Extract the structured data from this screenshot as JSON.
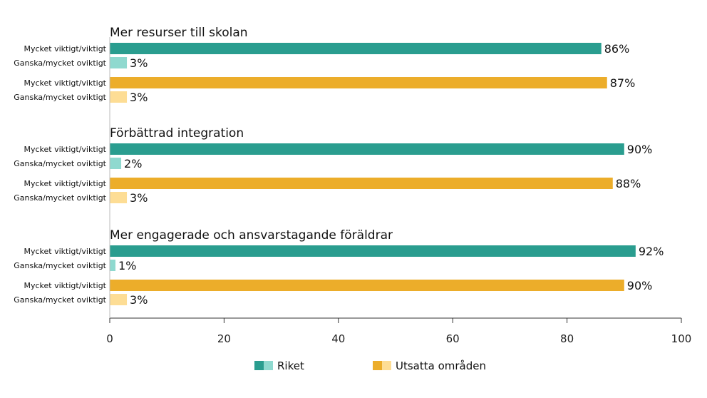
{
  "chart_data": {
    "type": "bar",
    "orientation": "horizontal",
    "xlim": [
      0,
      100
    ],
    "xticks": [
      0,
      20,
      40,
      60,
      80,
      100
    ],
    "colors": {
      "riket_dark": "#2a9d8f",
      "riket_light": "#8fd9cf",
      "utsatta_dark": "#ecad2a",
      "utsatta_light": "#fddd95"
    },
    "legend": [
      {
        "name": "Riket",
        "colors": [
          "#2a9d8f",
          "#8fd9cf"
        ]
      },
      {
        "name": "Utsatta områden",
        "colors": [
          "#ecad2a",
          "#fddd95"
        ]
      }
    ],
    "groups": [
      {
        "title": "Mer resurser till skolan",
        "rows": [
          {
            "label": "Mycket viktigt/viktigt",
            "series": "Riket",
            "value": 86,
            "value_label": "86%",
            "color": "#2a9d8f"
          },
          {
            "label": "Ganska/mycket oviktigt",
            "series": "Riket",
            "value": 3,
            "value_label": "3%",
            "color": "#8fd9cf"
          },
          {
            "label": "Mycket viktigt/viktigt",
            "series": "Utsatta områden",
            "value": 87,
            "value_label": "87%",
            "color": "#ecad2a"
          },
          {
            "label": "Ganska/mycket oviktigt",
            "series": "Utsatta områden",
            "value": 3,
            "value_label": "3%",
            "color": "#fddd95"
          }
        ]
      },
      {
        "title": "Förbättrad integration",
        "rows": [
          {
            "label": "Mycket viktigt/viktigt",
            "series": "Riket",
            "value": 90,
            "value_label": "90%",
            "color": "#2a9d8f"
          },
          {
            "label": "Ganska/mycket oviktigt",
            "series": "Riket",
            "value": 2,
            "value_label": "2%",
            "color": "#8fd9cf"
          },
          {
            "label": "Mycket viktigt/viktigt",
            "series": "Utsatta områden",
            "value": 88,
            "value_label": "88%",
            "color": "#ecad2a"
          },
          {
            "label": "Ganska/mycket oviktigt",
            "series": "Utsatta områden",
            "value": 3,
            "value_label": "3%",
            "color": "#fddd95"
          }
        ]
      },
      {
        "title": "Mer engagerade och ansvarstagande föräldrar",
        "rows": [
          {
            "label": "Mycket viktigt/viktigt",
            "series": "Riket",
            "value": 92,
            "value_label": "92%",
            "color": "#2a9d8f"
          },
          {
            "label": "Ganska/mycket oviktigt",
            "series": "Riket",
            "value": 1,
            "value_label": "1%",
            "color": "#8fd9cf"
          },
          {
            "label": "Mycket viktigt/viktigt",
            "series": "Utsatta områden",
            "value": 90,
            "value_label": "90%",
            "color": "#ecad2a"
          },
          {
            "label": "Ganska/mycket oviktigt",
            "series": "Utsatta områden",
            "value": 3,
            "value_label": "3%",
            "color": "#fddd95"
          }
        ]
      }
    ]
  }
}
